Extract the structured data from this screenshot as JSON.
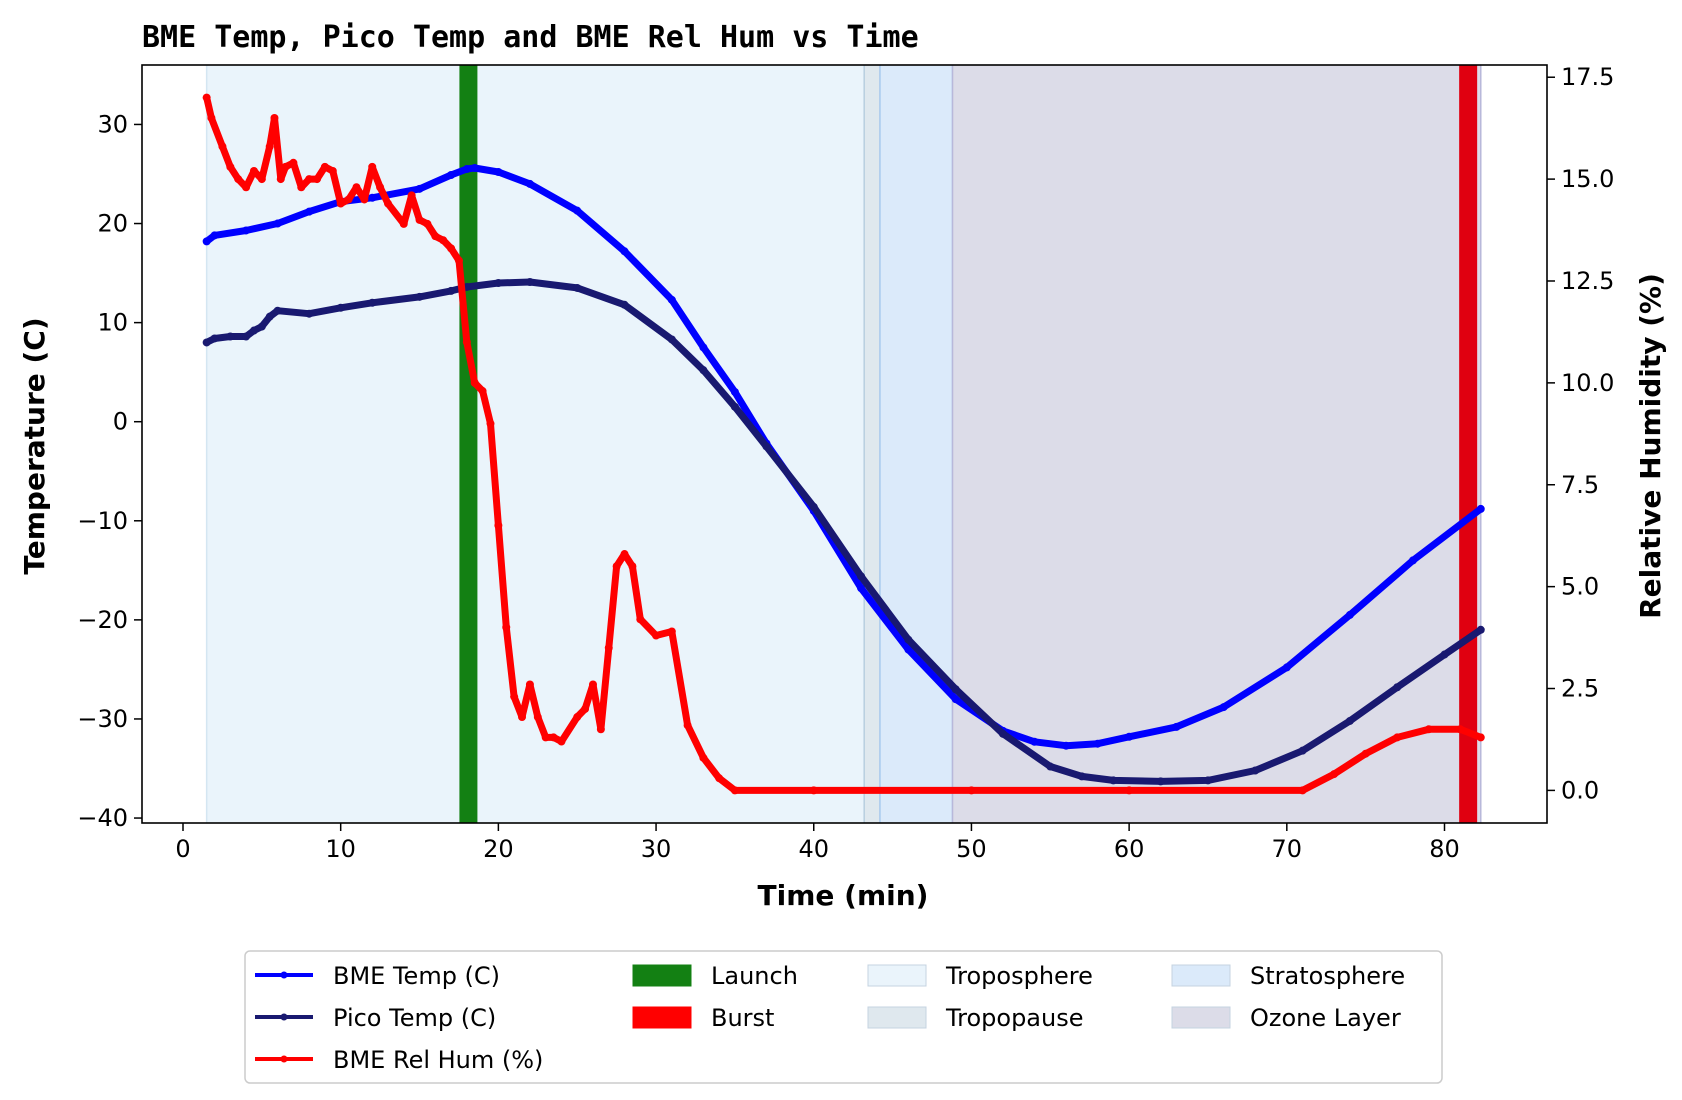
{
  "chart_data": {
    "type": "line",
    "title": "BME Temp, Pico Temp and BME Rel Hum vs Time",
    "xlabel": "Time (min)",
    "ylabel": "Temperature (C)",
    "y2label": "Relative Humidity (%)",
    "xlim": [
      -2.6,
      86.5
    ],
    "ylim": [
      -40.5,
      36
    ],
    "y2lim": [
      -0.8,
      17.8
    ],
    "xticks": [
      0,
      10,
      20,
      30,
      40,
      50,
      60,
      70,
      80
    ],
    "yticks": [
      -40,
      -30,
      -20,
      -10,
      0,
      10,
      20,
      30
    ],
    "y2ticks": [
      0.0,
      2.5,
      5.0,
      7.5,
      10.0,
      12.5,
      15.0,
      17.5
    ],
    "grid": false,
    "legend_position": "bottom, below plot",
    "colors": {
      "bme_temp": "#0000ff",
      "pico_temp": "#191970",
      "bme_hum": "#ff0000",
      "launch": "#138013",
      "burst": "#e00010",
      "troposphere": "#eaf4fb",
      "tropopause": "#dfe8ee",
      "stratosphere": "#dbeafa",
      "ozone": "#dcdce8"
    },
    "regions": [
      {
        "name": "Troposphere",
        "x": [
          1.5,
          43.2
        ]
      },
      {
        "name": "Tropopause",
        "x": [
          43.2,
          44.2
        ]
      },
      {
        "name": "Stratosphere",
        "x": [
          44.2,
          48.8
        ]
      },
      {
        "name": "Ozone Layer",
        "x": [
          48.8,
          82.3
        ]
      }
    ],
    "events": [
      {
        "name": "Launch",
        "x": 18.1
      },
      {
        "name": "Burst",
        "x": 81.5
      }
    ],
    "series": [
      {
        "name": "BME Temp (C)",
        "axis": "left",
        "x": [
          1.5,
          2,
          4,
          6,
          8,
          10,
          12,
          15,
          17,
          18,
          18.5,
          20,
          22,
          25,
          28,
          31,
          33,
          35,
          37,
          40,
          43,
          46,
          49,
          52,
          54,
          56,
          58,
          60,
          63,
          66,
          70,
          74,
          78,
          82.3
        ],
        "values": [
          18.2,
          18.8,
          19.3,
          20.0,
          21.2,
          22.2,
          22.6,
          23.5,
          24.9,
          25.5,
          25.6,
          25.2,
          24.0,
          21.3,
          17.2,
          12.3,
          7.5,
          3.0,
          -2.2,
          -9.0,
          -16.8,
          -23.0,
          -28.0,
          -31.2,
          -32.3,
          -32.7,
          -32.5,
          -31.8,
          -30.8,
          -28.8,
          -24.8,
          -19.5,
          -14.0,
          -8.8
        ]
      },
      {
        "name": "Pico Temp (C)",
        "axis": "left",
        "x": [
          1.5,
          2,
          3,
          4,
          4.5,
          5,
          5.5,
          6,
          8,
          10,
          12,
          15,
          17,
          18,
          20,
          22,
          25,
          28,
          31,
          33,
          35,
          37,
          40,
          43,
          46,
          49,
          52,
          55,
          57,
          59,
          62,
          65,
          68,
          71,
          74,
          77,
          80,
          82.3
        ],
        "values": [
          8.0,
          8.4,
          8.6,
          8.6,
          9.2,
          9.6,
          10.6,
          11.2,
          10.9,
          11.5,
          12.0,
          12.6,
          13.2,
          13.6,
          14.0,
          14.1,
          13.5,
          11.8,
          8.3,
          5.2,
          1.5,
          -2.5,
          -8.6,
          -15.6,
          -22.0,
          -27.0,
          -31.5,
          -34.8,
          -35.8,
          -36.2,
          -36.3,
          -36.2,
          -35.2,
          -33.2,
          -30.2,
          -26.8,
          -23.5,
          -21.0
        ]
      },
      {
        "name": "BME Rel Hum (%)",
        "axis": "right",
        "x": [
          1.5,
          1.8,
          2.5,
          3,
          3.5,
          4,
          4.5,
          5,
          5.5,
          5.8,
          6.2,
          6.5,
          7,
          7.5,
          8,
          8.5,
          9,
          9.5,
          10,
          10.5,
          11,
          11.5,
          12,
          12.5,
          13,
          14,
          14.5,
          15,
          15.5,
          16,
          16.5,
          17,
          17.5,
          18,
          18.5,
          19,
          19.5,
          20,
          20.5,
          21,
          21.5,
          22,
          22.5,
          23,
          23.5,
          24,
          25,
          25.5,
          26,
          26.5,
          27,
          27.5,
          28,
          28.5,
          29,
          30,
          31,
          32,
          33,
          34,
          35,
          40,
          50,
          60,
          71,
          73,
          75,
          77,
          79,
          81,
          82.3
        ],
        "values": [
          17.0,
          16.5,
          15.8,
          15.3,
          15.0,
          14.8,
          15.2,
          15.0,
          15.8,
          16.5,
          15.0,
          15.3,
          15.4,
          14.8,
          15.0,
          15.0,
          15.3,
          15.2,
          14.4,
          14.5,
          14.8,
          14.5,
          15.3,
          14.8,
          14.4,
          13.9,
          14.6,
          14.0,
          13.9,
          13.6,
          13.5,
          13.3,
          13.0,
          11.0,
          10.0,
          9.8,
          9.0,
          6.5,
          4.0,
          2.3,
          1.8,
          2.6,
          1.8,
          1.3,
          1.3,
          1.2,
          1.8,
          2.0,
          2.6,
          1.5,
          3.5,
          5.5,
          5.8,
          5.5,
          4.2,
          3.8,
          3.9,
          1.6,
          0.8,
          0.3,
          0.0,
          0.0,
          0.0,
          0.0,
          0.0,
          0.4,
          0.9,
          1.3,
          1.5,
          1.5,
          1.3
        ]
      }
    ],
    "legend": [
      {
        "label": "BME Temp (C)",
        "kind": "line",
        "color": "#0000ff"
      },
      {
        "label": "Pico Temp (C)",
        "kind": "line",
        "color": "#191970"
      },
      {
        "label": "BME Rel Hum (%)",
        "kind": "line",
        "color": "#ff0000"
      },
      {
        "label": "Launch",
        "kind": "patch",
        "color": "#138013"
      },
      {
        "label": "Burst",
        "kind": "patch",
        "color": "#ff0000"
      },
      {
        "label": "Troposphere",
        "kind": "patch",
        "color": "#eaf4fb"
      },
      {
        "label": "Tropopause",
        "kind": "patch",
        "color": "#dfe8ee"
      },
      {
        "label": "Stratosphere",
        "kind": "patch",
        "color": "#dbeafa"
      },
      {
        "label": "Ozone Layer",
        "kind": "patch",
        "color": "#dcdce8"
      }
    ]
  }
}
